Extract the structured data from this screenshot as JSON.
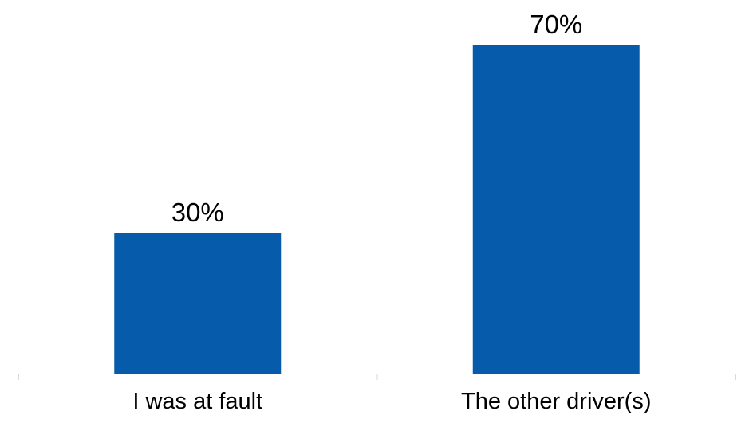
{
  "chart_data": {
    "type": "bar",
    "title": "",
    "xlabel": "",
    "ylabel": "",
    "categories": [
      "I was at fault",
      "The other driver(s)"
    ],
    "values": [
      30,
      70
    ],
    "data_labels": [
      "30%",
      "70%"
    ],
    "unit": "%",
    "ylim": [
      0,
      75
    ],
    "grid": false,
    "legend": "none",
    "colors": {
      "bar": "#065BAA",
      "axis": "#D9D9D9",
      "text": "#000000"
    }
  }
}
